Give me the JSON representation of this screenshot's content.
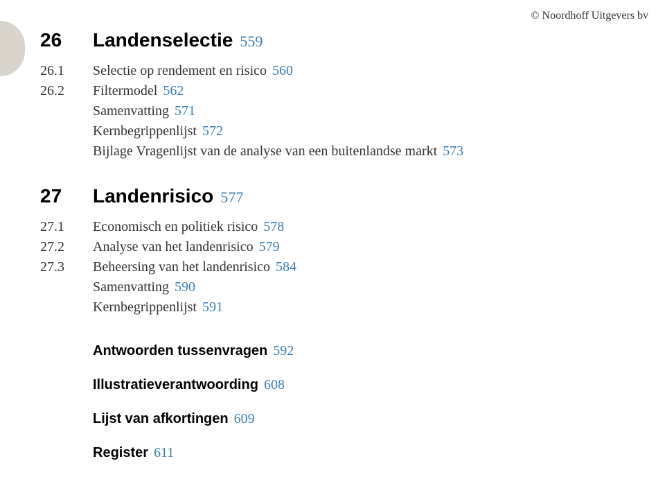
{
  "copyright": "© Noordhoff Uitgevers bv",
  "colors": {
    "page_number": "#3b7eb4",
    "tab_bg": "#d9d5cc",
    "text": "#333333",
    "heading": "#000000",
    "background": "#ffffff"
  },
  "chapters": [
    {
      "num": "26",
      "title": "Landenselectie",
      "page": "559",
      "sections": [
        {
          "num": "26.1",
          "title": "Selectie op rendement en risico",
          "page": "560"
        },
        {
          "num": "26.2",
          "title": "Filtermodel",
          "page": "562"
        }
      ],
      "end_items": [
        {
          "title": "Samenvatting",
          "page": "571"
        },
        {
          "title": "Kernbegrippenlijst",
          "page": "572"
        },
        {
          "title": "Bijlage Vragenlijst van de analyse van een buitenlandse markt",
          "page": "573"
        }
      ]
    },
    {
      "num": "27",
      "title": "Landenrisico",
      "page": "577",
      "sections": [
        {
          "num": "27.1",
          "title": "Economisch en politiek risico",
          "page": "578"
        },
        {
          "num": "27.2",
          "title": "Analyse van het landenrisico",
          "page": "579"
        },
        {
          "num": "27.3",
          "title": "Beheersing van het landenrisico",
          "page": "584"
        }
      ],
      "end_items": [
        {
          "title": "Samenvatting",
          "page": "590"
        },
        {
          "title": "Kernbegrippenlijst",
          "page": "591"
        }
      ]
    }
  ],
  "back_matter": [
    {
      "title": "Antwoorden tussenvragen",
      "page": "592"
    },
    {
      "title": "Illustratieverantwoording",
      "page": "608"
    },
    {
      "title": "Lijst van afkortingen",
      "page": "609"
    },
    {
      "title": "Register",
      "page": "611"
    }
  ]
}
